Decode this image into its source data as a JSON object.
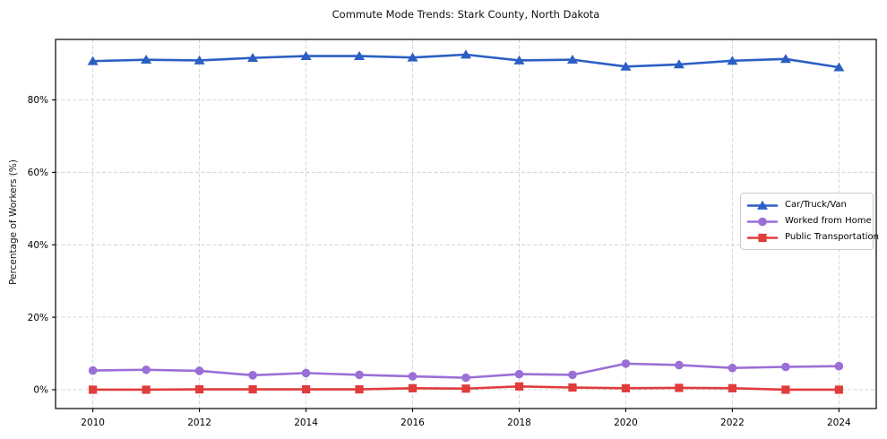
{
  "chart_data": {
    "type": "line",
    "title": "Commute Mode Trends: Stark County, North Dakota",
    "xlabel": "",
    "ylabel": "Percentage of Workers (%)",
    "x": [
      2010,
      2011,
      2012,
      2013,
      2014,
      2015,
      2016,
      2017,
      2018,
      2019,
      2020,
      2021,
      2022,
      2023,
      2024
    ],
    "series": [
      {
        "name": "Car/Truck/Van",
        "marker": "triangle",
        "color": "#2b5fc4",
        "values": [
          90.7,
          91.1,
          90.9,
          91.6,
          92.1,
          92.1,
          91.7,
          92.5,
          90.9,
          91.1,
          89.2,
          89.8,
          90.8,
          91.3,
          89.0
        ]
      },
      {
        "name": "Worked from Home",
        "marker": "circle",
        "color": "#9a6fd6",
        "values": [
          5.3,
          5.5,
          5.2,
          4.0,
          4.6,
          4.1,
          3.7,
          3.3,
          4.3,
          4.1,
          7.2,
          6.8,
          6.0,
          6.3,
          6.5
        ]
      },
      {
        "name": "Public Transportation",
        "marker": "square",
        "color": "#e13c3c",
        "values": [
          0.0,
          0.0,
          0.1,
          0.1,
          0.1,
          0.1,
          0.4,
          0.3,
          0.9,
          0.6,
          0.4,
          0.5,
          0.4,
          0.0,
          0.0
        ]
      }
    ],
    "xticks": {
      "values": [
        2010,
        2012,
        2014,
        2016,
        2018,
        2020,
        2022,
        2024
      ],
      "labels": [
        "2010",
        "2012",
        "2014",
        "2016",
        "2018",
        "2020",
        "2022",
        "2024"
      ]
    },
    "yticks": {
      "values": [
        0,
        20,
        40,
        60,
        80
      ],
      "labels": [
        "0%",
        "20%",
        "40%",
        "60%",
        "80%"
      ]
    },
    "xlim": [
      2009.3,
      2024.7
    ],
    "ylim": [
      -5.2,
      96.7
    ],
    "grid": true,
    "grid_style": "dashed",
    "legend": {
      "position": "center-right",
      "entries": [
        "Car/Truck/Van",
        "Worked from Home",
        "Public Transportation"
      ]
    },
    "colors": {
      "grid": "#d0d0d0",
      "frame": "#000000",
      "text": "#000000",
      "legend_border": "#cccccc",
      "background": "#ffffff"
    }
  }
}
